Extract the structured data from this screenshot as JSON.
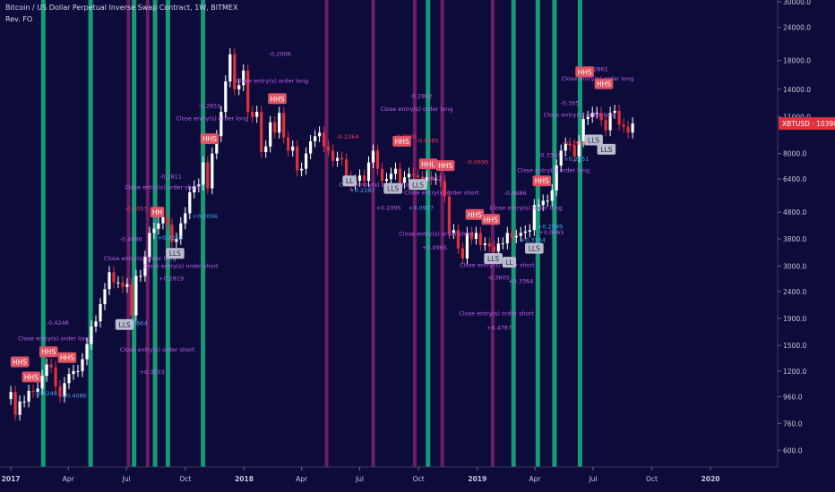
{
  "header": {
    "title": "Bitcoin / US Dollar Perpetual Inverse Swap Contract, 1W, BITMEX",
    "subtitle": "Rev. FO"
  },
  "chart_data": {
    "type": "candlestick",
    "scale": "log",
    "symbol_label": "XBTUSD",
    "last_price": "10390.0",
    "y_ticks": [
      "30000.0",
      "24000.0",
      "18000.0",
      "14000.0",
      "11000.0",
      "8000.0",
      "6400.0",
      "4800.0",
      "3800.0",
      "3000.0",
      "2400.0",
      "1900.0",
      "1500.0",
      "1200.0",
      "960.0",
      "760.0",
      "600.0"
    ],
    "x_ticks": [
      "2017",
      "Apr",
      "Jul",
      "Oct",
      "2018",
      "Apr",
      "Jul",
      "Oct",
      "2019",
      "Apr",
      "Jul",
      "Oct",
      "2020"
    ],
    "x_range": [
      "2016-12-15",
      "2020-04-15"
    ],
    "y_range": [
      520,
      30500
    ],
    "closes": [
      [
        "2016-12-25",
        940
      ],
      [
        "2017-01-01",
        1000
      ],
      [
        "2017-01-08",
        820
      ],
      [
        "2017-01-15",
        920
      ],
      [
        "2017-01-22",
        920
      ],
      [
        "2017-01-29",
        1010
      ],
      [
        "2017-02-05",
        1000
      ],
      [
        "2017-02-12",
        1030
      ],
      [
        "2017-02-19",
        1150
      ],
      [
        "2017-02-26",
        1270
      ],
      [
        "2017-03-05",
        1240
      ],
      [
        "2017-03-12",
        1050
      ],
      [
        "2017-03-19",
        960
      ],
      [
        "2017-03-26",
        1080
      ],
      [
        "2017-04-02",
        1170
      ],
      [
        "2017-04-09",
        1200
      ],
      [
        "2017-04-16",
        1200
      ],
      [
        "2017-04-23",
        1330
      ],
      [
        "2017-04-30",
        1520
      ],
      [
        "2017-05-07",
        1770
      ],
      [
        "2017-05-14",
        1850
      ],
      [
        "2017-05-21",
        2150
      ],
      [
        "2017-05-28",
        2450
      ],
      [
        "2017-06-04",
        2840
      ],
      [
        "2017-06-11",
        2600
      ],
      [
        "2017-06-18",
        2600
      ],
      [
        "2017-06-25",
        2500
      ],
      [
        "2017-07-02",
        2560
      ],
      [
        "2017-07-09",
        1950
      ],
      [
        "2017-07-16",
        2750
      ],
      [
        "2017-07-23",
        2750
      ],
      [
        "2017-07-30",
        3250
      ],
      [
        "2017-08-06",
        4000
      ],
      [
        "2017-08-13",
        4150
      ],
      [
        "2017-08-20",
        4350
      ],
      [
        "2017-08-27",
        4600
      ],
      [
        "2017-09-03",
        4300
      ],
      [
        "2017-09-10",
        3700
      ],
      [
        "2017-09-17",
        3800
      ],
      [
        "2017-09-24",
        4350
      ],
      [
        "2017-10-01",
        4750
      ],
      [
        "2017-10-08",
        5700
      ],
      [
        "2017-10-15",
        6000
      ],
      [
        "2017-10-22",
        6100
      ],
      [
        "2017-10-29",
        7400
      ],
      [
        "2017-11-05",
        5900
      ],
      [
        "2017-11-12",
        8000
      ],
      [
        "2017-11-19",
        9300
      ],
      [
        "2017-11-26",
        11500
      ],
      [
        "2017-12-03",
        15000
      ],
      [
        "2017-12-10",
        19000
      ],
      [
        "2017-12-17",
        14000
      ],
      [
        "2017-12-24",
        14500
      ],
      [
        "2017-12-31",
        16500
      ],
      [
        "2018-01-07",
        11500
      ],
      [
        "2018-01-14",
        11000
      ],
      [
        "2018-01-21",
        11500
      ],
      [
        "2018-01-28",
        8100
      ],
      [
        "2018-02-04",
        8500
      ],
      [
        "2018-02-11",
        10500
      ],
      [
        "2018-02-18",
        9600
      ],
      [
        "2018-02-25",
        11400
      ],
      [
        "2018-03-04",
        9200
      ],
      [
        "2018-03-11",
        8200
      ],
      [
        "2018-03-18",
        8500
      ],
      [
        "2018-03-25",
        6900
      ],
      [
        "2018-04-01",
        7000
      ],
      [
        "2018-04-08",
        8000
      ],
      [
        "2018-04-15",
        8900
      ],
      [
        "2018-04-22",
        9300
      ],
      [
        "2018-04-29",
        9600
      ],
      [
        "2018-05-06",
        8500
      ],
      [
        "2018-05-13",
        8200
      ],
      [
        "2018-05-20",
        7500
      ],
      [
        "2018-05-27",
        7700
      ],
      [
        "2018-06-03",
        7600
      ],
      [
        "2018-06-10",
        6500
      ],
      [
        "2018-06-17",
        6100
      ],
      [
        "2018-06-24",
        6300
      ],
      [
        "2018-07-01",
        6600
      ],
      [
        "2018-07-08",
        6300
      ],
      [
        "2018-07-15",
        7400
      ],
      [
        "2018-07-22",
        8200
      ],
      [
        "2018-07-29",
        7000
      ],
      [
        "2018-08-05",
        6300
      ],
      [
        "2018-08-12",
        6400
      ],
      [
        "2018-08-19",
        6700
      ],
      [
        "2018-08-26",
        7000
      ],
      [
        "2018-09-02",
        6200
      ],
      [
        "2018-09-09",
        6500
      ],
      [
        "2018-09-16",
        6700
      ],
      [
        "2018-09-23",
        6600
      ],
      [
        "2018-09-30",
        6500
      ],
      [
        "2018-10-07",
        6300
      ],
      [
        "2018-10-14",
        6500
      ],
      [
        "2018-10-21",
        6400
      ],
      [
        "2018-10-28",
        6400
      ],
      [
        "2018-11-04",
        6300
      ],
      [
        "2018-11-11",
        5500
      ],
      [
        "2018-11-18",
        4000
      ],
      [
        "2018-11-25",
        4100
      ],
      [
        "2018-12-02",
        3500
      ],
      [
        "2018-12-09",
        3200
      ],
      [
        "2018-12-16",
        4000
      ],
      [
        "2018-12-23",
        3800
      ],
      [
        "2018-12-30",
        4000
      ],
      [
        "2019-01-06",
        3600
      ],
      [
        "2019-01-13",
        3650
      ],
      [
        "2019-01-20",
        3550
      ],
      [
        "2019-01-27",
        3400
      ],
      [
        "2019-02-03",
        3650
      ],
      [
        "2019-02-10",
        3650
      ],
      [
        "2019-02-17",
        4000
      ],
      [
        "2019-02-24",
        3850
      ],
      [
        "2019-03-03",
        3900
      ],
      [
        "2019-03-10",
        4000
      ],
      [
        "2019-03-17",
        4050
      ],
      [
        "2019-03-24",
        4100
      ],
      [
        "2019-03-31",
        5100
      ],
      [
        "2019-04-07",
        5100
      ],
      [
        "2019-04-14",
        5300
      ],
      [
        "2019-04-21",
        5300
      ],
      [
        "2019-04-28",
        5800
      ],
      [
        "2019-05-05",
        7200
      ],
      [
        "2019-05-12",
        8200
      ],
      [
        "2019-05-19",
        8700
      ],
      [
        "2019-05-26",
        8600
      ],
      [
        "2019-06-02",
        7800
      ],
      [
        "2019-06-09",
        8900
      ],
      [
        "2019-06-16",
        10800
      ],
      [
        "2019-06-23",
        11000
      ],
      [
        "2019-06-30",
        11400
      ],
      [
        "2019-07-07",
        11400
      ],
      [
        "2019-07-14",
        10700
      ],
      [
        "2019-07-21",
        9800
      ],
      [
        "2019-07-28",
        11400
      ],
      [
        "2019-08-04",
        11600
      ],
      [
        "2019-08-11",
        10300
      ],
      [
        "2019-08-18",
        10100
      ],
      [
        "2019-08-25",
        9600
      ],
      [
        "2019-09-01",
        10400
      ]
    ],
    "green_bands": [
      "2017-02-20",
      "2017-05-05",
      "2017-07-12",
      "2017-08-14",
      "2017-09-03",
      "2017-10-28",
      "2018-10-15",
      "2019-02-26",
      "2019-04-05",
      "2019-05-01",
      "2019-06-10"
    ],
    "purple_bands": [
      "2017-07-04",
      "2017-08-03",
      "2018-05-10",
      "2018-07-22",
      "2018-09-25",
      "2018-11-07",
      "2019-01-25"
    ],
    "badges": [
      {
        "text": "HHS",
        "date": "2017-01-15",
        "price": 1300,
        "style": "red"
      },
      {
        "text": "HHS",
        "date": "2017-02-02",
        "price": 1140,
        "style": "red"
      },
      {
        "text": "HHS",
        "date": "2017-03-01",
        "price": 1420,
        "style": "red"
      },
      {
        "text": "HHS",
        "date": "2017-03-30",
        "price": 1350,
        "style": "red"
      },
      {
        "text": "LLS",
        "date": "2017-06-28",
        "price": 1800,
        "style": "grey"
      },
      {
        "text": "HH",
        "date": "2017-08-18",
        "price": 4800,
        "style": "red"
      },
      {
        "text": "LLS",
        "date": "2017-09-15",
        "price": 3350,
        "style": "grey"
      },
      {
        "text": "HHS",
        "date": "2017-11-08",
        "price": 9100,
        "style": "red"
      },
      {
        "text": "HHS",
        "date": "2018-02-22",
        "price": 12900,
        "style": "red"
      },
      {
        "text": "HHS",
        "date": "2018-09-05",
        "price": 8900,
        "style": "red"
      },
      {
        "text": "LL",
        "date": "2018-06-15",
        "price": 6300,
        "style": "grey"
      },
      {
        "text": "LLS",
        "date": "2018-08-22",
        "price": 5900,
        "style": "grey"
      },
      {
        "text": "LLS",
        "date": "2018-09-30",
        "price": 6100,
        "style": "grey"
      },
      {
        "text": "HHL",
        "date": "2018-10-16",
        "price": 7300,
        "style": "red"
      },
      {
        "text": "HHS",
        "date": "2018-11-12",
        "price": 7200,
        "style": "red"
      },
      {
        "text": "HHS",
        "date": "2018-12-28",
        "price": 4700,
        "style": "red"
      },
      {
        "text": "HHS",
        "date": "2019-01-22",
        "price": 4500,
        "style": "red"
      },
      {
        "text": "LLS",
        "date": "2019-01-26",
        "price": 3200,
        "style": "grey"
      },
      {
        "text": "LL",
        "date": "2019-02-20",
        "price": 3100,
        "style": "grey"
      },
      {
        "text": "LLS",
        "date": "2019-03-31",
        "price": 3500,
        "style": "grey"
      },
      {
        "text": "HHS",
        "date": "2019-04-12",
        "price": 6300,
        "style": "red"
      },
      {
        "text": "HHS",
        "date": "2019-06-18",
        "price": 16300,
        "style": "red"
      },
      {
        "text": "HHS",
        "date": "2019-07-18",
        "price": 14700,
        "style": "red"
      },
      {
        "text": "LLS",
        "date": "2019-07-02",
        "price": 9000,
        "style": "grey"
      },
      {
        "text": "LLS",
        "date": "2019-07-22",
        "price": 8300,
        "style": "grey"
      }
    ],
    "annotations": [
      {
        "text": "-0.4248",
        "date": "2017-03-15",
        "price": 1800,
        "color": "violet"
      },
      {
        "text": "Close entry(s) order long",
        "date": "2017-03-10",
        "price": 1570,
        "color": "violet"
      },
      {
        "text": "-0.4248",
        "date": "2017-02-25",
        "price": 970,
        "color": "blue"
      },
      {
        "text": "+0.4086",
        "date": "2017-04-10",
        "price": 950,
        "color": "blue"
      },
      {
        "text": "Close entry(s) order short",
        "date": "2017-08-18",
        "price": 1420,
        "color": "violet"
      },
      {
        "text": "+0.3053",
        "date": "2017-08-10",
        "price": 1170,
        "color": "violet"
      },
      {
        "text": "+0.5664",
        "date": "2017-07-14",
        "price": 1790,
        "color": "blue"
      },
      {
        "text": "Close entry(s) order long",
        "date": "2017-07-22",
        "price": 3150,
        "color": "violet"
      },
      {
        "text": "-0.4086",
        "date": "2017-07-08",
        "price": 3730,
        "color": "violet"
      },
      {
        "text": "+0.2819",
        "date": "2017-09-09",
        "price": 2640,
        "color": "violet"
      },
      {
        "text": "Close entry(s) order short",
        "date": "2017-09-24",
        "price": 2950,
        "color": "violet"
      },
      {
        "text": "+0.2252",
        "date": "2017-09-07",
        "price": 3770,
        "color": "blue"
      },
      {
        "text": "-0.3053",
        "date": "2017-07-16",
        "price": 4850,
        "color": "red"
      },
      {
        "text": "Close entry(s) order short",
        "date": "2017-08-26",
        "price": 5850,
        "color": "violet"
      },
      {
        "text": "-0.2811",
        "date": "2017-09-08",
        "price": 6430,
        "color": "violet"
      },
      {
        "text": "+0.2006",
        "date": "2017-11-01",
        "price": 4550,
        "color": "blue"
      },
      {
        "text": "Close entry(s) order long",
        "date": "2017-11-12",
        "price": 10700,
        "color": "violet"
      },
      {
        "text": "-0.2651",
        "date": "2017-11-08",
        "price": 11900,
        "color": "violet"
      },
      {
        "text": "-0.2006",
        "date": "2018-02-26",
        "price": 18700,
        "color": "violet"
      },
      {
        "text": "Close entry(s) order long",
        "date": "2018-02-14",
        "price": 14800,
        "color": "violet"
      },
      {
        "text": "-0.2862",
        "date": "2018-10-05",
        "price": 13000,
        "color": "violet"
      },
      {
        "text": "Close entry(s) order long",
        "date": "2018-09-28",
        "price": 11600,
        "color": "violet"
      },
      {
        "text": "-0.2264",
        "date": "2018-06-12",
        "price": 9100,
        "color": "red"
      },
      {
        "text": "-0.2985",
        "date": "2018-09-11",
        "price": 9100,
        "color": "red"
      },
      {
        "text": "-0.0695",
        "date": "2018-10-15",
        "price": 8800,
        "color": "red"
      },
      {
        "text": "Close entry(s) order short",
        "date": "2018-07-27",
        "price": 6000,
        "color": "violet"
      },
      {
        "text": "+0.2095",
        "date": "2018-08-15",
        "price": 4900,
        "color": "violet"
      },
      {
        "text": "+0.2287",
        "date": "2018-07-05",
        "price": 5700,
        "color": "blue"
      },
      {
        "text": "+0.0927",
        "date": "2018-10-05",
        "price": 4900,
        "color": "blue"
      },
      {
        "text": "Close entry(s) order short",
        "date": "2018-11-06",
        "price": 5600,
        "color": "violet"
      },
      {
        "text": "-0.0927",
        "date": "2018-10-20",
        "price": 6300,
        "color": "violet"
      },
      {
        "text": "-0.0695",
        "date": "2019-01-01",
        "price": 7300,
        "color": "red"
      },
      {
        "text": "+0.0965",
        "date": "2018-10-26",
        "price": 3460,
        "color": "violet"
      },
      {
        "text": "Close entry(s) order short",
        "date": "2018-10-29",
        "price": 3900,
        "color": "violet"
      },
      {
        "text": "Close entry(s) order long",
        "date": "2019-03-18",
        "price": 4900,
        "color": "violet"
      },
      {
        "text": "-0.4686",
        "date": "2019-03-01",
        "price": 5580,
        "color": "violet"
      },
      {
        "text": "Close entry(s) order short",
        "date": "2019-02-01",
        "price": 2970,
        "color": "violet"
      },
      {
        "text": "-0.3605",
        "date": "2019-02-03",
        "price": 2670,
        "color": "violet"
      },
      {
        "text": "+0.3364",
        "date": "2019-03-29",
        "price": 3700,
        "color": "blue"
      },
      {
        "text": "+0.3364",
        "date": "2019-03-10",
        "price": 2580,
        "color": "violet"
      },
      {
        "text": "Close entry(s) order short",
        "date": "2019-01-31",
        "price": 1950,
        "color": "violet"
      },
      {
        "text": "+0.4787",
        "date": "2019-02-04",
        "price": 1720,
        "color": "violet"
      },
      {
        "text": "+0.0865",
        "date": "2019-04-27",
        "price": 3950,
        "color": "violet"
      },
      {
        "text": "-0.3364",
        "date": "2019-04-24",
        "price": 7750,
        "color": "violet"
      },
      {
        "text": "Close entry(s) order long",
        "date": "2019-04-30",
        "price": 6800,
        "color": "violet"
      },
      {
        "text": "+0.2451",
        "date": "2019-06-05",
        "price": 7500,
        "color": "blue"
      },
      {
        "text": "-0.2861",
        "date": "2019-07-07",
        "price": 16400,
        "color": "violet"
      },
      {
        "text": "Close entry(s) order long",
        "date": "2019-07-08",
        "price": 15100,
        "color": "violet"
      },
      {
        "text": "-0.305",
        "date": "2019-05-26",
        "price": 12200,
        "color": "violet"
      },
      {
        "text": "Close entry(s) order long",
        "date": "2019-06-10",
        "price": 11000,
        "color": "violet"
      },
      {
        "text": "+0.2999",
        "date": "2019-06-02",
        "price": 8600,
        "color": "red"
      },
      {
        "text": "+0.2999",
        "date": "2019-04-25",
        "price": 4150,
        "color": "blue"
      }
    ],
    "colors": {
      "background": "#0d0b3a",
      "up": "#ffffff",
      "down": "#e0313c",
      "green_band": "#149a78",
      "purple_band": "#6a1e64",
      "badge_red": "#e05262",
      "badge_grey": "#b8bccd",
      "annot_violet": "#c060e8",
      "annot_blue": "#4aa7f0",
      "annot_red": "#f04050",
      "price_label": "#e0313c",
      "axis_text": "#c8c8d8"
    }
  }
}
